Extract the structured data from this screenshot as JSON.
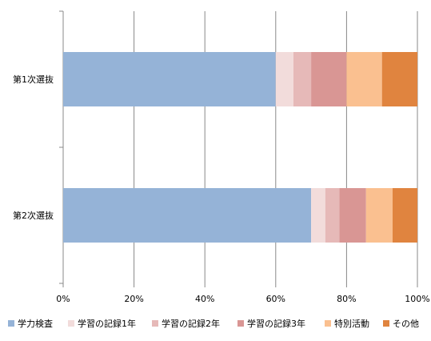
{
  "chart_data": {
    "type": "bar",
    "orientation": "horizontal",
    "stacked": "percent",
    "categories": [
      "第1次選抜",
      "第2次選抜"
    ],
    "series": [
      {
        "name": "学力検査",
        "color": "#95b3d7",
        "values": [
          60,
          70
        ]
      },
      {
        "name": "学習の記録1年",
        "color": "#f2dcdb",
        "values": [
          5,
          4
        ]
      },
      {
        "name": "学習の記録2年",
        "color": "#e6b9b8",
        "values": [
          5,
          4
        ]
      },
      {
        "name": "学習の記録3年",
        "color": "#d99694",
        "values": [
          10,
          7.5
        ]
      },
      {
        "name": "特別活動",
        "color": "#fac090",
        "values": [
          10,
          7.5
        ]
      },
      {
        "name": "その他",
        "color": "#e0843f",
        "values": [
          10,
          7
        ]
      }
    ],
    "xlim": [
      0,
      100
    ],
    "xticks": [
      "0%",
      "20%",
      "40%",
      "60%",
      "80%",
      "100%"
    ],
    "grid": true,
    "legend_position": "bottom"
  }
}
